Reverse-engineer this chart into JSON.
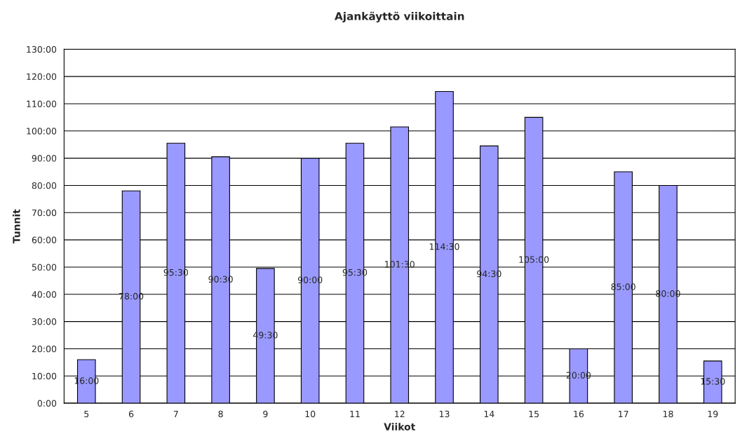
{
  "chart_data": {
    "type": "bar",
    "title": "Ajankäyttö viikoittain",
    "xlabel": "Viikot",
    "ylabel": "Tunnit",
    "categories": [
      "5",
      "6",
      "7",
      "8",
      "9",
      "10",
      "11",
      "12",
      "13",
      "14",
      "15",
      "16",
      "17",
      "18",
      "19"
    ],
    "values": [
      16,
      78,
      95.5,
      90.5,
      49.5,
      90,
      95.5,
      101.5,
      114.5,
      94.5,
      105,
      20,
      85,
      80,
      15.5
    ],
    "value_labels": [
      "16:00",
      "78:00",
      "95:30",
      "90:30",
      "49:30",
      "90:00",
      "95:30",
      "101:30",
      "114:30",
      "94:30",
      "105:00",
      "20:00",
      "85:00",
      "80:00",
      "15:30"
    ],
    "color": "#9999ff",
    "ylim": [
      0,
      130
    ],
    "yticks": [
      {
        "value": 0,
        "label": "0:00"
      },
      {
        "value": 10,
        "label": "10:00"
      },
      {
        "value": 20,
        "label": "20:00"
      },
      {
        "value": 30,
        "label": "30:00"
      },
      {
        "value": 40,
        "label": "40:00"
      },
      {
        "value": 50,
        "label": "50:00"
      },
      {
        "value": 60,
        "label": "60:00"
      },
      {
        "value": 70,
        "label": "70:00"
      },
      {
        "value": 80,
        "label": "80:00"
      },
      {
        "value": 90,
        "label": "90:00"
      },
      {
        "value": 100,
        "label": "100:00"
      },
      {
        "value": 110,
        "label": "110:00"
      },
      {
        "value": 120,
        "label": "120:00"
      },
      {
        "value": 130,
        "label": "130:00"
      }
    ],
    "grid": "y"
  }
}
